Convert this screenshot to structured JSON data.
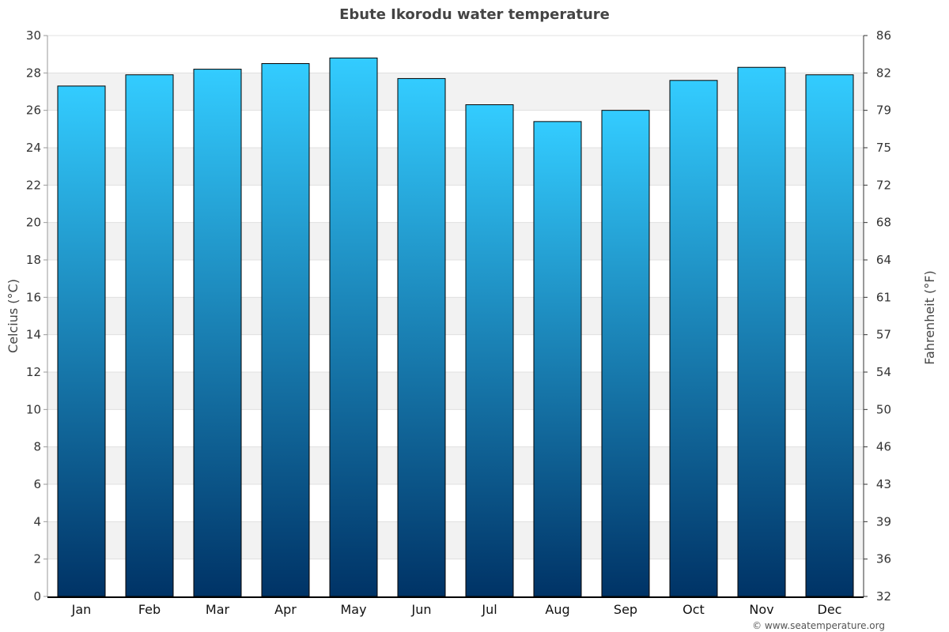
{
  "chart_data": {
    "type": "bar",
    "title": "Ebute Ikorodu water temperature",
    "categories": [
      "Jan",
      "Feb",
      "Mar",
      "Apr",
      "May",
      "Jun",
      "Jul",
      "Aug",
      "Sep",
      "Oct",
      "Nov",
      "Dec"
    ],
    "values": [
      27.3,
      27.9,
      28.2,
      28.5,
      28.8,
      27.7,
      26.3,
      25.4,
      26.0,
      27.6,
      28.3,
      27.9
    ],
    "ylabel": "Celcius (°C)",
    "y2label": "Fahrenheit (°F)",
    "ylim": [
      0,
      30
    ],
    "yticks": [
      0,
      2,
      4,
      6,
      8,
      10,
      12,
      14,
      16,
      18,
      20,
      22,
      24,
      26,
      28,
      30
    ],
    "y2ticks": [
      "32",
      "36",
      "39",
      "43",
      "46",
      "50",
      "54",
      "57",
      "61",
      "64",
      "68",
      "72",
      "75",
      "79",
      "82",
      "86"
    ],
    "grid": true,
    "colors": {
      "bar_top": "#33ccff",
      "bar_bottom": "#003366",
      "band": "#f2f2f2"
    }
  },
  "credit": "© www.seatemperature.org"
}
